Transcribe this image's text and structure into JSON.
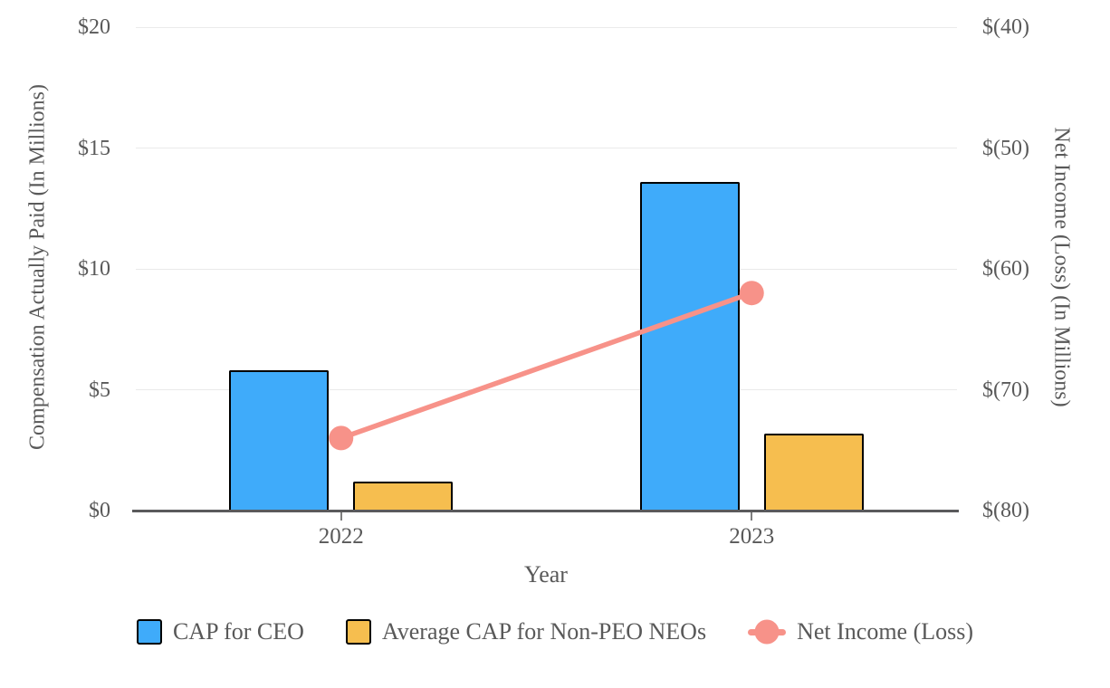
{
  "page": {
    "background": "#ffffff",
    "text_color": "#595959"
  },
  "chart_data": {
    "type": "combo-bar-line",
    "title": "",
    "categories": [
      "2022",
      "2023"
    ],
    "series": [
      {
        "name": "CAP for CEO",
        "type": "bar",
        "axis": "left",
        "color": "#3FABFA",
        "border_color": "#000000",
        "values": [
          5.8,
          13.6
        ]
      },
      {
        "name": "Average CAP for Non-PEO NEOs",
        "type": "bar",
        "axis": "left",
        "color": "#F6BE4F",
        "border_color": "#000000",
        "values": [
          1.2,
          3.2
        ]
      },
      {
        "name": "Net Income (Loss)",
        "type": "line",
        "axis": "right",
        "color": "#F79289",
        "values": [
          -74,
          -62
        ]
      }
    ],
    "xlabel": "Year",
    "left_axis": {
      "title": "Compensation Actually Paid (In Millions)",
      "min": 0,
      "max": 20,
      "ticks": [
        {
          "value": 0,
          "label": "$0"
        },
        {
          "value": 5,
          "label": "$5"
        },
        {
          "value": 10,
          "label": "$10"
        },
        {
          "value": 15,
          "label": "$15"
        },
        {
          "value": 20,
          "label": "$20"
        }
      ]
    },
    "right_axis": {
      "title": "Net Income (Loss) (In Millions)",
      "min": -80,
      "max": -40,
      "ticks": [
        {
          "value": -80,
          "label": "$(80)"
        },
        {
          "value": -70,
          "label": "$(70)"
        },
        {
          "value": -60,
          "label": "$(60)"
        },
        {
          "value": -50,
          "label": "$(50)"
        },
        {
          "value": -40,
          "label": "$(40)"
        }
      ]
    },
    "grid": true,
    "legend_position": "bottom",
    "gridline_color": "#eaeaea",
    "axis_line_color": "#5a5a5c",
    "tick_mark_color": "#7f7f7f"
  }
}
